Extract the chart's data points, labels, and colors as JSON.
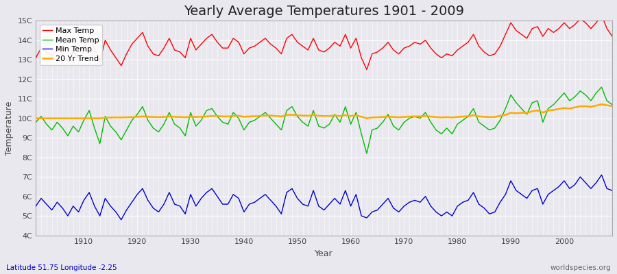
{
  "title": "Yearly Average Temperatures 1901 - 2009",
  "xlabel": "Year",
  "ylabel": "Temperature",
  "bottom_left_label": "Latitude 51.75 Longitude -2.25",
  "bottom_right_label": "worldspecies.org",
  "years": [
    1901,
    1902,
    1903,
    1904,
    1905,
    1906,
    1907,
    1908,
    1909,
    1910,
    1911,
    1912,
    1913,
    1914,
    1915,
    1916,
    1917,
    1918,
    1919,
    1920,
    1921,
    1922,
    1923,
    1924,
    1925,
    1926,
    1927,
    1928,
    1929,
    1930,
    1931,
    1932,
    1933,
    1934,
    1935,
    1936,
    1937,
    1938,
    1939,
    1940,
    1941,
    1942,
    1943,
    1944,
    1945,
    1946,
    1947,
    1948,
    1949,
    1950,
    1951,
    1952,
    1953,
    1954,
    1955,
    1956,
    1957,
    1958,
    1959,
    1960,
    1961,
    1962,
    1963,
    1964,
    1965,
    1966,
    1967,
    1968,
    1969,
    1970,
    1971,
    1972,
    1973,
    1974,
    1975,
    1976,
    1977,
    1978,
    1979,
    1980,
    1981,
    1982,
    1983,
    1984,
    1985,
    1986,
    1987,
    1988,
    1989,
    1990,
    1991,
    1992,
    1993,
    1994,
    1995,
    1996,
    1997,
    1998,
    1999,
    2000,
    2001,
    2002,
    2003,
    2004,
    2005,
    2006,
    2007,
    2008,
    2009
  ],
  "max_temp": [
    13.1,
    13.6,
    13.4,
    13.2,
    13.5,
    13.3,
    12.9,
    13.4,
    13.1,
    13.5,
    14.2,
    13.6,
    12.9,
    14.0,
    13.5,
    13.1,
    12.7,
    13.3,
    13.8,
    14.1,
    14.4,
    13.7,
    13.3,
    13.2,
    13.6,
    14.1,
    13.5,
    13.4,
    13.1,
    14.1,
    13.5,
    13.8,
    14.1,
    14.3,
    13.9,
    13.6,
    13.6,
    14.1,
    13.9,
    13.3,
    13.6,
    13.7,
    13.9,
    14.1,
    13.8,
    13.6,
    13.3,
    14.1,
    14.3,
    13.9,
    13.7,
    13.5,
    14.1,
    13.5,
    13.4,
    13.6,
    13.9,
    13.7,
    14.3,
    13.6,
    14.1,
    13.1,
    12.5,
    13.3,
    13.4,
    13.6,
    13.9,
    13.5,
    13.3,
    13.6,
    13.7,
    13.9,
    13.8,
    14.0,
    13.6,
    13.3,
    13.1,
    13.3,
    13.2,
    13.5,
    13.7,
    13.9,
    14.3,
    13.7,
    13.4,
    13.2,
    13.3,
    13.7,
    14.3,
    14.9,
    14.5,
    14.3,
    14.1,
    14.6,
    14.7,
    14.2,
    14.6,
    14.4,
    14.6,
    14.9,
    14.6,
    14.8,
    15.1,
    14.9,
    14.6,
    14.9,
    15.3,
    14.6,
    14.2
  ],
  "mean_temp": [
    9.8,
    10.1,
    9.7,
    9.4,
    9.8,
    9.5,
    9.1,
    9.6,
    9.3,
    9.9,
    10.4,
    9.5,
    8.7,
    10.1,
    9.6,
    9.3,
    8.9,
    9.4,
    9.9,
    10.2,
    10.6,
    9.9,
    9.5,
    9.3,
    9.7,
    10.3,
    9.7,
    9.5,
    9.1,
    10.3,
    9.6,
    9.9,
    10.4,
    10.5,
    10.1,
    9.8,
    9.7,
    10.3,
    10.0,
    9.4,
    9.8,
    9.9,
    10.1,
    10.3,
    10.0,
    9.7,
    9.4,
    10.4,
    10.6,
    10.1,
    9.8,
    9.6,
    10.4,
    9.6,
    9.5,
    9.7,
    10.2,
    9.8,
    10.6,
    9.7,
    10.3,
    9.2,
    8.2,
    9.4,
    9.5,
    9.8,
    10.2,
    9.6,
    9.4,
    9.8,
    10.0,
    10.1,
    10.0,
    10.3,
    9.8,
    9.4,
    9.2,
    9.5,
    9.2,
    9.7,
    9.9,
    10.1,
    10.5,
    9.8,
    9.6,
    9.4,
    9.5,
    9.9,
    10.5,
    11.2,
    10.8,
    10.5,
    10.2,
    10.8,
    10.9,
    9.8,
    10.5,
    10.7,
    11.0,
    11.3,
    10.9,
    11.1,
    11.4,
    11.2,
    10.9,
    11.3,
    11.6,
    10.9,
    10.7
  ],
  "min_temp": [
    5.5,
    5.9,
    5.6,
    5.3,
    5.7,
    5.4,
    5.0,
    5.5,
    5.2,
    5.8,
    6.2,
    5.5,
    5.0,
    5.9,
    5.5,
    5.2,
    4.8,
    5.3,
    5.7,
    6.1,
    6.4,
    5.8,
    5.4,
    5.2,
    5.6,
    6.2,
    5.6,
    5.5,
    5.1,
    6.1,
    5.5,
    5.9,
    6.2,
    6.4,
    6.0,
    5.6,
    5.6,
    6.1,
    5.9,
    5.2,
    5.6,
    5.7,
    5.9,
    6.1,
    5.8,
    5.5,
    5.1,
    6.2,
    6.4,
    5.9,
    5.6,
    5.5,
    6.3,
    5.5,
    5.3,
    5.6,
    5.9,
    5.6,
    6.3,
    5.5,
    6.1,
    5.0,
    4.9,
    5.2,
    5.3,
    5.6,
    5.9,
    5.4,
    5.2,
    5.5,
    5.7,
    5.8,
    5.7,
    6.0,
    5.5,
    5.2,
    5.0,
    5.2,
    5.0,
    5.5,
    5.7,
    5.8,
    6.2,
    5.6,
    5.4,
    5.1,
    5.2,
    5.7,
    6.1,
    6.8,
    6.3,
    6.1,
    5.9,
    6.3,
    6.4,
    5.6,
    6.1,
    6.3,
    6.5,
    6.8,
    6.4,
    6.6,
    7.0,
    6.7,
    6.4,
    6.7,
    7.1,
    6.4,
    6.3
  ],
  "trend": [
    10.0,
    10.0,
    10.0,
    10.0,
    10.0,
    10.0,
    10.0,
    10.0,
    10.0,
    10.0,
    10.0,
    10.0,
    10.0,
    10.02,
    10.04,
    10.04,
    10.04,
    10.05,
    10.06,
    10.08,
    10.1,
    10.08,
    10.07,
    10.06,
    10.07,
    10.1,
    10.08,
    10.07,
    10.05,
    10.08,
    10.07,
    10.08,
    10.1,
    10.12,
    10.12,
    10.1,
    10.1,
    10.12,
    10.13,
    10.08,
    10.1,
    10.11,
    10.12,
    10.14,
    10.14,
    10.12,
    10.1,
    10.17,
    10.18,
    10.15,
    10.14,
    10.13,
    10.17,
    10.13,
    10.12,
    10.12,
    10.14,
    10.12,
    10.16,
    10.12,
    10.16,
    10.08,
    10.0,
    10.04,
    10.05,
    10.07,
    10.09,
    10.07,
    10.05,
    10.07,
    10.09,
    10.1,
    10.1,
    10.12,
    10.09,
    10.06,
    10.04,
    10.06,
    10.04,
    10.07,
    10.09,
    10.11,
    10.16,
    10.1,
    10.08,
    10.06,
    10.07,
    10.13,
    10.18,
    10.28,
    10.26,
    10.28,
    10.28,
    10.36,
    10.4,
    10.3,
    10.4,
    10.43,
    10.48,
    10.53,
    10.5,
    10.56,
    10.62,
    10.62,
    10.59,
    10.65,
    10.72,
    10.67,
    10.62
  ],
  "max_color": "#ff0000",
  "mean_color": "#00bb00",
  "min_color": "#0000cc",
  "trend_color": "#ffaa00",
  "bg_color": "#e8e8ee",
  "grid_color": "#ffffff",
  "ylim_min": 4,
  "ylim_max": 15,
  "yticks": [
    4,
    5,
    6,
    7,
    8,
    9,
    10,
    11,
    12,
    13,
    14,
    15
  ],
  "ytick_labels": [
    "4C",
    "5C",
    "6C",
    "7C",
    "8C",
    "9C",
    "10C",
    "11C",
    "12C",
    "13C",
    "14C",
    "15C"
  ],
  "title_fontsize": 14,
  "axis_label_fontsize": 9,
  "tick_fontsize": 8,
  "legend_fontsize": 8,
  "linewidth": 1.0,
  "trend_linewidth": 1.8
}
